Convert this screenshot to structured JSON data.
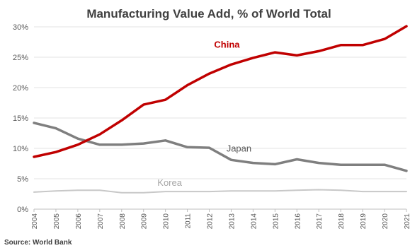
{
  "chart_data": {
    "type": "line",
    "title": "Manufacturing Value Add, % of World Total",
    "source": "Source: World Bank",
    "x": [
      "2004",
      "2005",
      "2006",
      "2007",
      "2008",
      "2009",
      "2010",
      "2011",
      "2012",
      "2013",
      "2014",
      "2015",
      "2016",
      "2017",
      "2018",
      "2019",
      "2020",
      "2021"
    ],
    "yticks": [
      "0%",
      "5%",
      "10%",
      "15%",
      "20%",
      "25%",
      "30%"
    ],
    "ylim": [
      0,
      30
    ],
    "grid": true,
    "series": [
      {
        "name": "China",
        "color": "#c00000",
        "values": [
          8.6,
          9.4,
          10.6,
          12.3,
          14.6,
          17.2,
          18.0,
          20.4,
          22.3,
          23.8,
          24.9,
          25.8,
          25.3,
          26.0,
          27.0,
          27.0,
          28.0,
          30.1
        ]
      },
      {
        "name": "Japan",
        "color": "#7f7f7f",
        "values": [
          14.2,
          13.3,
          11.6,
          10.6,
          10.6,
          10.8,
          11.3,
          10.2,
          10.1,
          8.1,
          7.6,
          7.4,
          8.2,
          7.6,
          7.3,
          7.3,
          7.3,
          6.3
        ]
      },
      {
        "name": "Korea",
        "color": "#c8c8c8",
        "values": [
          2.8,
          3.0,
          3.1,
          3.1,
          2.7,
          2.7,
          2.9,
          2.9,
          2.9,
          3.0,
          3.0,
          3.0,
          3.1,
          3.2,
          3.1,
          2.9,
          2.9,
          2.9
        ]
      }
    ]
  }
}
